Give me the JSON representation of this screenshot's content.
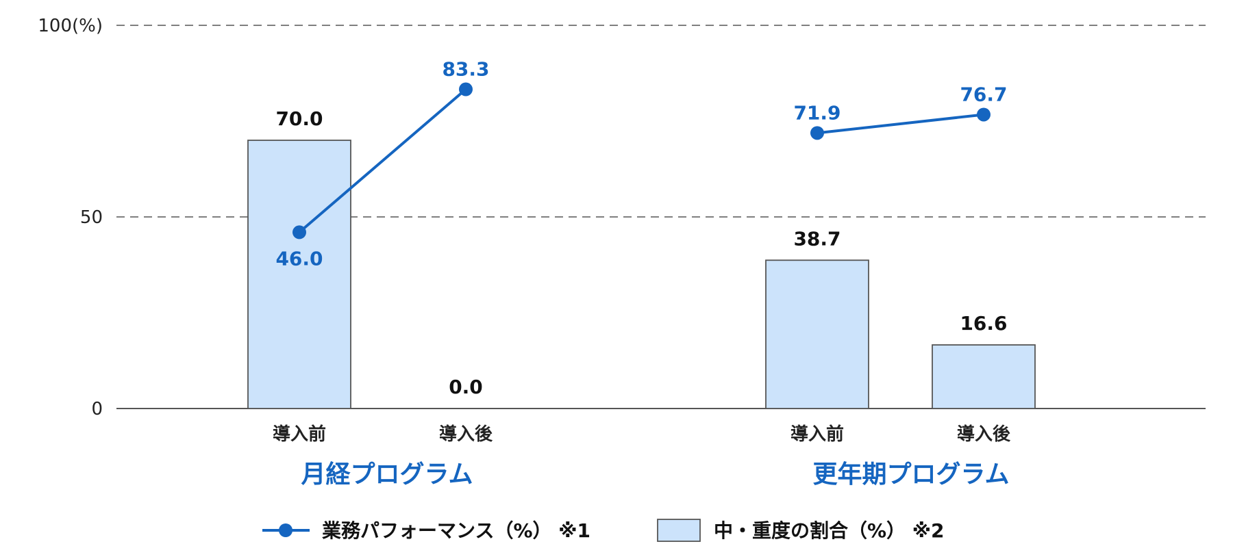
{
  "chart_data": {
    "type": "bar",
    "ylim": [
      0,
      100
    ],
    "grid": true,
    "y_ticks": [
      "0",
      "50",
      "100(%)"
    ],
    "y_tick_values": [
      0,
      50,
      100
    ],
    "legend_position": "bottom",
    "groups": [
      {
        "name": "月経プログラム",
        "categories": [
          "導入前",
          "導入後"
        ],
        "bar_values": [
          70.0,
          0.0
        ],
        "bar_labels": [
          "70.0",
          "0.0"
        ],
        "line_values": [
          46.0,
          83.3
        ],
        "line_labels": [
          "46.0",
          "83.3"
        ]
      },
      {
        "name": "更年期プログラム",
        "categories": [
          "導入前",
          "導入後"
        ],
        "bar_values": [
          38.7,
          16.6
        ],
        "bar_labels": [
          "38.7",
          "16.6"
        ],
        "line_values": [
          71.9,
          76.7
        ],
        "line_labels": [
          "71.9",
          "76.7"
        ]
      }
    ],
    "series": [
      {
        "name": "業務パフォーマンス（%） ※1",
        "kind": "line",
        "color": "#1565c0"
      },
      {
        "name": "中・重度の割合（%） ※2",
        "kind": "bar",
        "color": "#cce3fb",
        "edge": "#555555"
      }
    ]
  }
}
